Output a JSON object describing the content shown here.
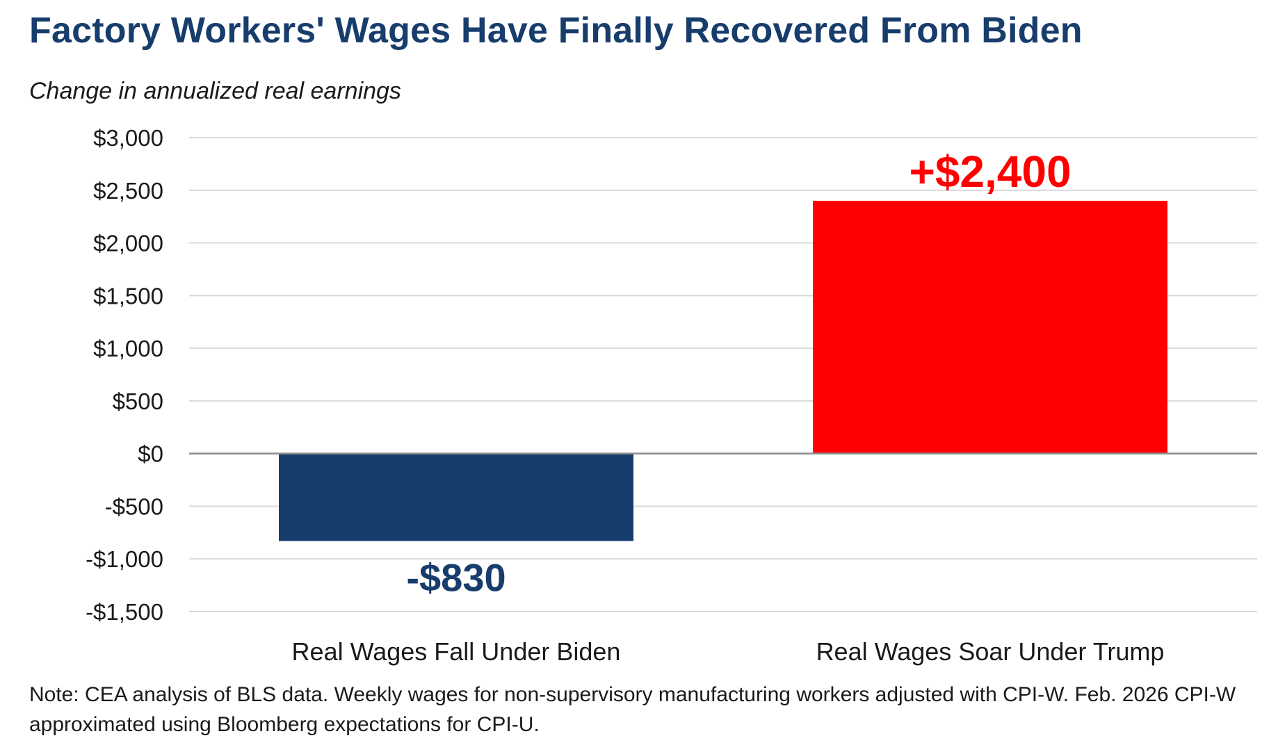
{
  "title": "Factory Workers' Wages Have Finally Recovered From Biden",
  "subtitle": "Change in annualized real earnings",
  "note": "Note: CEA analysis of BLS data. Weekly wages for non-supervisory manufacturing workers adjusted with CPI-W. Feb. 2026 CPI-W approximated using Bloomberg expectations for CPI-U.",
  "colors": {
    "title": "#173d6c",
    "biden_bar": "#173d6c",
    "trump_bar": "#ff0000",
    "grid": "#d9d9d9",
    "zero_line": "#8c8c8c"
  },
  "chart_data": {
    "type": "bar",
    "categories": [
      "Real Wages Fall Under Biden",
      "Real Wages Soar Under Trump"
    ],
    "values": [
      -830,
      2400
    ],
    "data_labels": [
      "-$830",
      "+$2,400"
    ],
    "bar_colors": [
      "#173d6c",
      "#ff0000"
    ],
    "ylim": [
      -1500,
      3000
    ],
    "yticks": [
      3000,
      2500,
      2000,
      1500,
      1000,
      500,
      0,
      -500,
      -1000,
      -1500
    ],
    "ytick_labels": [
      "$3,000",
      "$2,500",
      "$2,000",
      "$1,500",
      "$1,000",
      "$500",
      "$0",
      "-$500",
      "-$1,000",
      "-$1,500"
    ],
    "grid": true,
    "legend": "none"
  }
}
